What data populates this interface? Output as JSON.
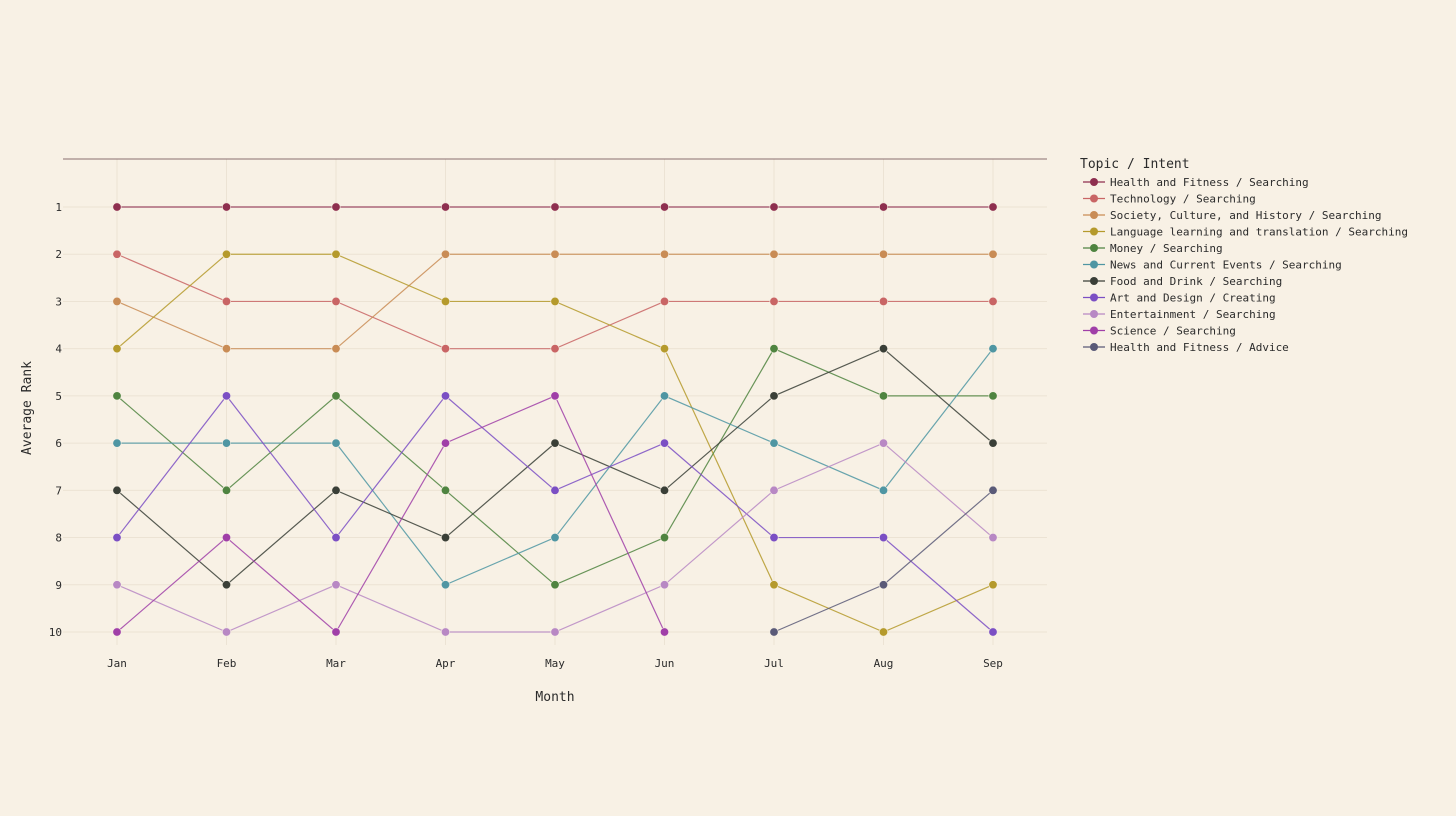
{
  "chart_data": {
    "type": "line",
    "title": "",
    "xlabel": "Month",
    "ylabel": "Average Rank",
    "y_reversed": true,
    "ylim": [
      1,
      10
    ],
    "yticks": [
      1,
      2,
      3,
      4,
      5,
      6,
      7,
      8,
      9,
      10
    ],
    "grid": true,
    "legend_title": "Topic / Intent",
    "legend_placement": "right",
    "categories": [
      "Jan",
      "Feb",
      "Mar",
      "Apr",
      "May",
      "Jun",
      "Jul",
      "Aug",
      "Sep"
    ],
    "series": [
      {
        "name": "Health and Fitness / Searching",
        "color": "#8e2f4f",
        "values": [
          1,
          1,
          1,
          1,
          1,
          1,
          1,
          1,
          1
        ]
      },
      {
        "name": "Technology / Searching",
        "color": "#c96565",
        "values": [
          2,
          3,
          3,
          4,
          4,
          3,
          3,
          3,
          3
        ]
      },
      {
        "name": "Society, Culture, and History / Searching",
        "color": "#c98c55",
        "values": [
          3,
          4,
          4,
          2,
          2,
          2,
          2,
          2,
          2
        ]
      },
      {
        "name": "Language learning and translation / Searching",
        "color": "#b59a2c",
        "values": [
          4,
          2,
          2,
          3,
          3,
          4,
          9,
          10,
          9
        ]
      },
      {
        "name": "Money / Searching",
        "color": "#4f8440",
        "values": [
          5,
          7,
          5,
          7,
          9,
          8,
          4,
          5,
          5
        ]
      },
      {
        "name": "News and Current Events / Searching",
        "color": "#4f96a3",
        "values": [
          6,
          6,
          6,
          9,
          8,
          5,
          6,
          7,
          4
        ]
      },
      {
        "name": "Food and Drink / Searching",
        "color": "#3a3f37",
        "values": [
          7,
          9,
          7,
          8,
          6,
          7,
          5,
          4,
          6
        ]
      },
      {
        "name": "Art and Design / Creating",
        "color": "#7b4fc4",
        "values": [
          8,
          5,
          8,
          5,
          7,
          6,
          8,
          8,
          10
        ]
      },
      {
        "name": "Entertainment / Searching",
        "color": "#b888c4",
        "values": [
          9,
          10,
          9,
          10,
          10,
          9,
          7,
          6,
          8
        ]
      },
      {
        "name": "Science / Searching",
        "color": "#a03fa8",
        "values": [
          10,
          8,
          10,
          6,
          5,
          10,
          null,
          null,
          null
        ]
      },
      {
        "name": "Health and Fitness / Advice",
        "color": "#5a5a78",
        "values": [
          null,
          null,
          null,
          null,
          null,
          null,
          10,
          9,
          7
        ]
      }
    ]
  }
}
